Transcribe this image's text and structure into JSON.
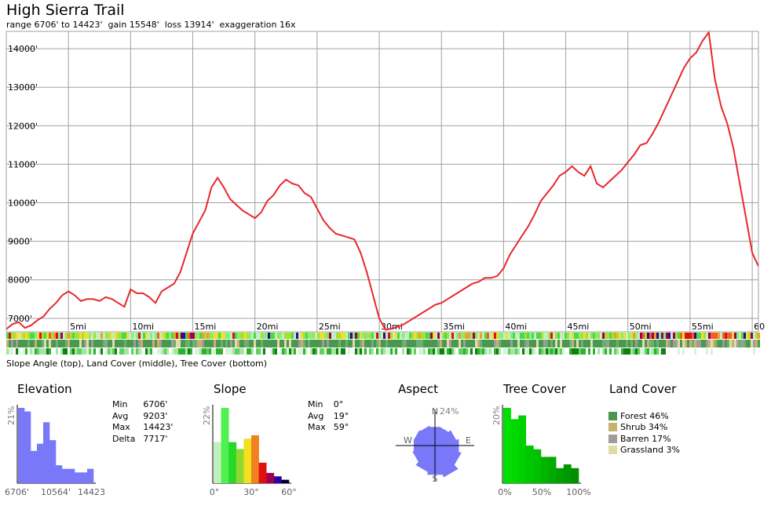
{
  "title": "High Sierra Trail",
  "subtitle": "range 6706' to 14423'  gain 15548'  loss 13914'  exaggeration 16x",
  "band_caption": "Slope Angle (top), Land Cover (middle), Tree Cover (bottom)",
  "colors": {
    "profile_line": "#e8282e",
    "grid": "#a0a0a0",
    "elevation_hist": "#7878f8",
    "tree_hist": "#10d010",
    "aspect": "#7878f8"
  },
  "chart_data": [
    {
      "type": "line",
      "title": "",
      "xlabel": "",
      "ylabel": "",
      "x_unit": "mi",
      "y_unit": "ft",
      "xlim": [
        0,
        60.5
      ],
      "ylim": [
        6650,
        14450
      ],
      "xticks": [
        5,
        10,
        15,
        20,
        25,
        30,
        35,
        40,
        45,
        50,
        55,
        60
      ],
      "xtick_labels": [
        "5mi",
        "10mi",
        "15mi",
        "20mi",
        "25mi",
        "30mi",
        "35mi",
        "40mi",
        "45mi",
        "50mi",
        "55mi",
        "60"
      ],
      "yticks": [
        7000,
        8000,
        9000,
        10000,
        11000,
        12000,
        13000,
        14000
      ],
      "ytick_labels": [
        "7000'",
        "8000'",
        "9000'",
        "10000'",
        "11000'",
        "12000'",
        "13000'",
        "14000'"
      ],
      "grid": true,
      "series": [
        {
          "x": [
            0,
            0.5,
            1,
            1.5,
            2,
            2.5,
            3,
            3.5,
            4,
            4.5,
            5,
            5.5,
            6,
            6.5,
            7,
            7.5,
            8,
            8.5,
            9,
            9.5,
            10,
            10.5,
            11,
            11.5,
            12,
            12.5,
            13,
            13.5,
            14,
            14.5,
            15,
            15.5,
            16,
            16.5,
            17,
            17.5,
            18,
            18.5,
            19,
            19.5,
            20,
            20.5,
            21,
            21.5,
            22,
            22.5,
            23,
            23.5,
            24,
            24.5,
            25,
            25.5,
            26,
            26.5,
            27,
            27.5,
            28,
            28.5,
            29,
            29.5,
            30,
            30.5,
            31,
            31.5,
            32,
            32.5,
            33,
            33.5,
            34,
            34.5,
            35,
            35.5,
            36,
            36.5,
            37,
            37.5,
            38,
            38.5,
            39,
            39.5,
            40,
            40.5,
            41,
            41.5,
            42,
            42.5,
            43,
            43.5,
            44,
            44.5,
            45,
            45.5,
            46,
            46.5,
            47,
            47.5,
            48,
            48.5,
            49,
            49.5,
            50,
            50.5,
            51,
            51.5,
            52,
            52.5,
            53,
            53.5,
            54,
            54.5,
            55,
            55.5,
            56,
            56.5,
            57,
            57.5,
            58,
            58.5,
            59,
            59.5,
            60,
            60.5
          ],
          "y": [
            6720,
            6850,
            6900,
            6750,
            6820,
            6950,
            7050,
            7250,
            7400,
            7600,
            7700,
            7600,
            7450,
            7500,
            7500,
            7450,
            7550,
            7500,
            7400,
            7300,
            7750,
            7650,
            7650,
            7550,
            7400,
            7700,
            7800,
            7900,
            8200,
            8700,
            9200,
            9500,
            9800,
            10400,
            10650,
            10400,
            10100,
            9950,
            9800,
            9700,
            9600,
            9750,
            10050,
            10200,
            10450,
            10600,
            10500,
            10450,
            10250,
            10150,
            9850,
            9550,
            9350,
            9200,
            9150,
            9100,
            9050,
            8700,
            8200,
            7600,
            7000,
            6706,
            6730,
            6780,
            6850,
            6950,
            7050,
            7150,
            7250,
            7350,
            7400,
            7500,
            7600,
            7700,
            7800,
            7900,
            7950,
            8050,
            8050,
            8100,
            8300,
            8650,
            8900,
            9150,
            9400,
            9700,
            10050,
            10250,
            10450,
            10700,
            10800,
            10950,
            10800,
            10700,
            10950,
            10500,
            10400,
            10550,
            10700,
            10850,
            11050,
            11250,
            11500,
            11550,
            11800,
            12100,
            12450,
            12800,
            13150,
            13500,
            13750,
            13900,
            14200,
            14423,
            13200,
            12500,
            12050,
            11400,
            10500,
            9600,
            8700,
            8350
          ]
        }
      ]
    },
    {
      "type": "bar",
      "title": "Elevation",
      "ylabel": "21%",
      "tick_labels": [
        "6706'",
        "10564'",
        "14423"
      ],
      "values": [
        21,
        20,
        9,
        11,
        17,
        12,
        5,
        4,
        4,
        3,
        3,
        4
      ],
      "ylim": [
        0,
        21
      ]
    },
    {
      "type": "bar",
      "title": "Slope",
      "ylabel": "22%",
      "tick_labels": [
        "0°",
        "30°",
        "60°"
      ],
      "values": [
        12,
        22,
        12,
        10,
        13,
        14,
        6,
        3,
        2,
        1
      ],
      "bar_colors": [
        "#c0f0c0",
        "#50f050",
        "#28d828",
        "#90d830",
        "#f0e020",
        "#f08020",
        "#e01010",
        "#a00050",
        "#3000a0",
        "#000030"
      ],
      "ylim": [
        0,
        22
      ]
    },
    {
      "type": "radar",
      "title": "Aspect",
      "label": "24%",
      "directions": [
        "N",
        "E",
        "S",
        "W"
      ],
      "values": [
        14,
        14,
        16,
        18,
        20,
        24,
        22,
        20,
        17,
        16,
        16,
        15
      ]
    },
    {
      "type": "bar",
      "title": "Tree Cover",
      "ylabel": "20%",
      "tick_labels": [
        "0%",
        "50%",
        "100%"
      ],
      "values": [
        20,
        17,
        18,
        10,
        9,
        7,
        7,
        4,
        5,
        4
      ],
      "bar_colors": [
        "#00e000",
        "#00d800",
        "#00d000",
        "#00c800",
        "#00c000",
        "#00b400",
        "#00aa00",
        "#00a000",
        "#009800",
        "#009000"
      ],
      "ylim": [
        0,
        20
      ]
    }
  ],
  "elevation_stats": [
    {
      "label": "Min",
      "value": "6706'"
    },
    {
      "label": "Avg",
      "value": "9203'"
    },
    {
      "label": "Max",
      "value": "14423'"
    },
    {
      "label": "Delta",
      "value": "7717'"
    }
  ],
  "slope_stats": [
    {
      "label": "Min",
      "value": "0°"
    },
    {
      "label": "Avg",
      "value": "19°"
    },
    {
      "label": "Max",
      "value": "59°"
    }
  ],
  "land_cover": {
    "title": "Land Cover",
    "items": [
      {
        "label": "Forest 46%",
        "color": "#4a9850"
      },
      {
        "label": "Shrub 34%",
        "color": "#c8b070"
      },
      {
        "label": "Barren 17%",
        "color": "#a09c96"
      },
      {
        "label": "Grassland 3%",
        "color": "#e0dca8"
      }
    ]
  }
}
